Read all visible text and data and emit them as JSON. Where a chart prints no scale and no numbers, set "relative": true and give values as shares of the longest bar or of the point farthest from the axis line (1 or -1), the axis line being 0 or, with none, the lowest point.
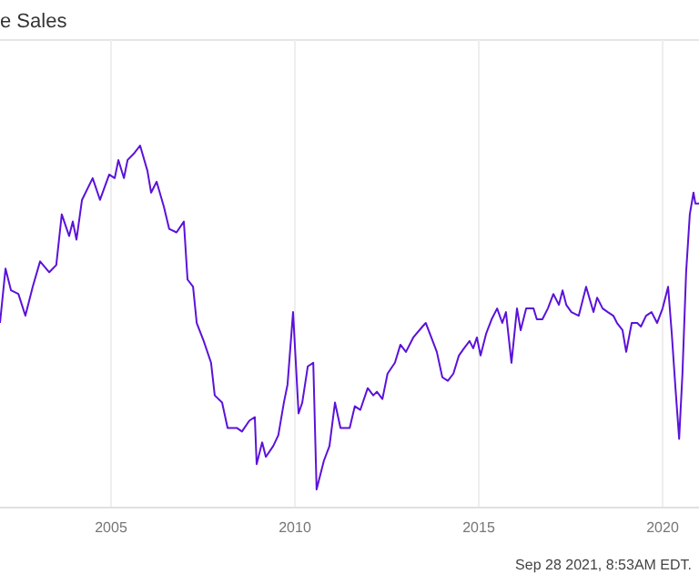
{
  "chart_data": {
    "type": "line",
    "title": "e Sales",
    "relative": true,
    "grid": "x",
    "color": "#5b12d9",
    "annotations": [
      "Sep 28 2021, 8:53AM EDT."
    ],
    "xlim": [
      2001.98,
      2020.99
    ],
    "xticks": [
      2005,
      2010,
      2015,
      2020
    ],
    "x": [
      2001.98,
      2002.13,
      2002.28,
      2002.48,
      2002.67,
      2002.87,
      2003.07,
      2003.32,
      2003.51,
      2003.66,
      2003.86,
      2003.96,
      2004.06,
      2004.21,
      2004.5,
      2004.7,
      2004.95,
      2005.1,
      2005.2,
      2005.35,
      2005.45,
      2005.64,
      2005.79,
      2005.99,
      2006.09,
      2006.24,
      2006.44,
      2006.58,
      2006.78,
      2006.98,
      2007.08,
      2007.23,
      2007.33,
      2007.52,
      2007.72,
      2007.82,
      2008.02,
      2008.17,
      2008.42,
      2008.56,
      2008.76,
      2008.91,
      2008.96,
      2009.11,
      2009.21,
      2009.41,
      2009.55,
      2009.7,
      2009.8,
      2009.95,
      2010.1,
      2010.2,
      2010.35,
      2010.5,
      2010.59,
      2010.79,
      2010.94,
      2011.09,
      2011.24,
      2011.39,
      2011.49,
      2011.63,
      2011.78,
      2011.98,
      2012.13,
      2012.23,
      2012.38,
      2012.52,
      2012.72,
      2012.87,
      2013.02,
      2013.22,
      2013.47,
      2013.56,
      2013.71,
      2013.86,
      2014.01,
      2014.16,
      2014.31,
      2014.46,
      2014.6,
      2014.75,
      2014.85,
      2014.95,
      2015.05,
      2015.2,
      2015.35,
      2015.5,
      2015.64,
      2015.74,
      2015.89,
      2016.04,
      2016.14,
      2016.29,
      2016.49,
      2016.58,
      2016.73,
      2016.88,
      2017.03,
      2017.18,
      2017.28,
      2017.38,
      2017.52,
      2017.72,
      2017.92,
      2018.12,
      2018.22,
      2018.37,
      2018.51,
      2018.66,
      2018.76,
      2018.91,
      2019.01,
      2019.16,
      2019.31,
      2019.41,
      2019.55,
      2019.7,
      2019.85,
      2020.0,
      2020.15,
      2020.25,
      2020.35,
      2020.45,
      2020.54,
      2020.64,
      2020.74,
      2020.84,
      2020.89,
      2020.99
    ],
    "values": [
      0.51,
      0.66,
      0.6,
      0.59,
      0.53,
      0.61,
      0.68,
      0.65,
      0.67,
      0.81,
      0.75,
      0.79,
      0.74,
      0.85,
      0.91,
      0.85,
      0.92,
      0.91,
      0.96,
      0.91,
      0.96,
      0.98,
      1.0,
      0.93,
      0.87,
      0.9,
      0.83,
      0.77,
      0.76,
      0.79,
      0.63,
      0.61,
      0.51,
      0.46,
      0.4,
      0.31,
      0.29,
      0.22,
      0.22,
      0.21,
      0.24,
      0.25,
      0.12,
      0.18,
      0.14,
      0.17,
      0.2,
      0.29,
      0.34,
      0.54,
      0.26,
      0.29,
      0.39,
      0.4,
      0.05,
      0.13,
      0.17,
      0.29,
      0.22,
      0.22,
      0.22,
      0.28,
      0.27,
      0.33,
      0.31,
      0.32,
      0.3,
      0.37,
      0.4,
      0.45,
      0.43,
      0.47,
      0.5,
      0.51,
      0.47,
      0.43,
      0.36,
      0.35,
      0.37,
      0.42,
      0.44,
      0.46,
      0.44,
      0.47,
      0.42,
      0.48,
      0.52,
      0.55,
      0.51,
      0.54,
      0.4,
      0.55,
      0.49,
      0.55,
      0.55,
      0.52,
      0.52,
      0.55,
      0.59,
      0.56,
      0.6,
      0.56,
      0.54,
      0.53,
      0.61,
      0.54,
      0.58,
      0.55,
      0.54,
      0.53,
      0.51,
      0.49,
      0.43,
      0.51,
      0.51,
      0.5,
      0.53,
      0.54,
      0.51,
      0.55,
      0.61,
      0.48,
      0.33,
      0.19,
      0.37,
      0.65,
      0.81,
      0.87,
      0.84,
      0.84
    ]
  }
}
